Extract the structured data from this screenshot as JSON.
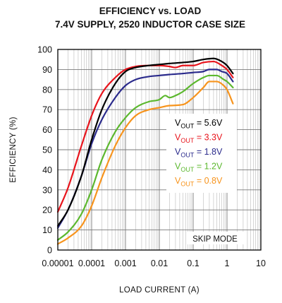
{
  "chart_data": {
    "type": "line",
    "title": "EFFICIENCY vs. LOAD",
    "subtitle": "7.4V SUPPLY, 2520 INDUCTOR CASE SIZE",
    "xlabel": "LOAD CURRENT (A)",
    "ylabel": "EFFICIENCY (%)",
    "xscale": "log",
    "xlim": [
      1e-05,
      10
    ],
    "ylim": [
      0,
      100
    ],
    "grid": true,
    "legend_position": "right-center",
    "annotation": "SKIP MODE",
    "x_ticks": [
      {
        "value": 1e-05,
        "label": "0.00001"
      },
      {
        "value": 0.0001,
        "label": "0.0001"
      },
      {
        "value": 0.001,
        "label": "0.001"
      },
      {
        "value": 0.01,
        "label": "0.01"
      },
      {
        "value": 0.1,
        "label": "0.1"
      },
      {
        "value": 1,
        "label": "1"
      },
      {
        "value": 10,
        "label": "10"
      }
    ],
    "y_ticks": [
      {
        "value": 0,
        "label": "0"
      },
      {
        "value": 10,
        "label": "10"
      },
      {
        "value": 20,
        "label": "20"
      },
      {
        "value": 30,
        "label": "30"
      },
      {
        "value": 40,
        "label": "40"
      },
      {
        "value": 50,
        "label": "50"
      },
      {
        "value": 60,
        "label": "60"
      },
      {
        "value": 70,
        "label": "70"
      },
      {
        "value": 80,
        "label": "80"
      },
      {
        "value": 90,
        "label": "90"
      },
      {
        "value": 100,
        "label": "100"
      }
    ],
    "series": [
      {
        "name": "VOUT = 5.6V",
        "color": "#000000",
        "x": [
          1e-05,
          2e-05,
          5e-05,
          0.0001,
          0.0002,
          0.0005,
          0.001,
          0.002,
          0.005,
          0.01,
          0.02,
          0.05,
          0.1,
          0.2,
          0.4,
          0.7,
          1.0,
          1.5
        ],
        "y": [
          12,
          20,
          37,
          55,
          70,
          83,
          89,
          91,
          92,
          92.5,
          93,
          93.5,
          94,
          95,
          95.5,
          94,
          92,
          88
        ]
      },
      {
        "name": "VOUT = 3.3V",
        "color": "#e8141c",
        "x": [
          1e-05,
          2e-05,
          5e-05,
          0.0001,
          0.0002,
          0.0005,
          0.001,
          0.002,
          0.005,
          0.01,
          0.02,
          0.03,
          0.05,
          0.1,
          0.2,
          0.4,
          0.7,
          1.0,
          1.5
        ],
        "y": [
          19,
          31,
          52,
          67,
          78,
          86,
          90,
          91.5,
          92,
          92,
          91.5,
          91,
          92,
          92,
          93.5,
          94,
          92,
          90,
          86
        ]
      },
      {
        "name": "VOUT = 1.8V",
        "color": "#2b2b8c",
        "x": [
          1e-05,
          2e-05,
          5e-05,
          0.0001,
          0.0002,
          0.0005,
          0.001,
          0.002,
          0.005,
          0.01,
          0.02,
          0.05,
          0.1,
          0.2,
          0.3,
          0.5,
          0.7,
          1.0,
          1.5
        ],
        "y": [
          11,
          20,
          37,
          53,
          65,
          76,
          82,
          85,
          86.5,
          87,
          87.5,
          88,
          88.5,
          89,
          90,
          90,
          89,
          88,
          84
        ]
      },
      {
        "name": "VOUT = 1.2V",
        "color": "#5cb82e",
        "x": [
          1e-05,
          2e-05,
          5e-05,
          0.0001,
          0.0002,
          0.0005,
          0.001,
          0.002,
          0.005,
          0.01,
          0.015,
          0.02,
          0.03,
          0.05,
          0.1,
          0.2,
          0.3,
          0.5,
          0.8,
          1.0,
          1.5
        ],
        "y": [
          5,
          9,
          18,
          30,
          45,
          59,
          66,
          71,
          74,
          75,
          77,
          76,
          77,
          79,
          83,
          86,
          87,
          87,
          85,
          84,
          81
        ]
      },
      {
        "name": "VOUT = 0.8V",
        "color": "#f7941d",
        "x": [
          1e-05,
          2e-05,
          5e-05,
          0.0001,
          0.0002,
          0.0005,
          0.001,
          0.002,
          0.005,
          0.01,
          0.02,
          0.05,
          0.1,
          0.2,
          0.3,
          0.5,
          0.8,
          1.0,
          1.5
        ],
        "y": [
          3,
          6,
          12,
          22,
          36,
          52,
          61,
          67,
          70,
          71,
          72,
          72.5,
          76,
          81,
          84,
          84,
          82,
          80,
          73
        ]
      }
    ],
    "legend": [
      {
        "prefix": "V",
        "sub": "OUT",
        "suffix": " = 5.6V",
        "color": "#000000"
      },
      {
        "prefix": "V",
        "sub": "OUT",
        "suffix": " = 3.3V",
        "color": "#e8141c"
      },
      {
        "prefix": "V",
        "sub": "OUT",
        "suffix": " = 1.8V",
        "color": "#2b2b8c"
      },
      {
        "prefix": "V",
        "sub": "OUT",
        "suffix": " = 1.2V",
        "color": "#5cb82e"
      },
      {
        "prefix": "V",
        "sub": "OUT",
        "suffix": " = 0.8V",
        "color": "#f7941d"
      }
    ]
  }
}
